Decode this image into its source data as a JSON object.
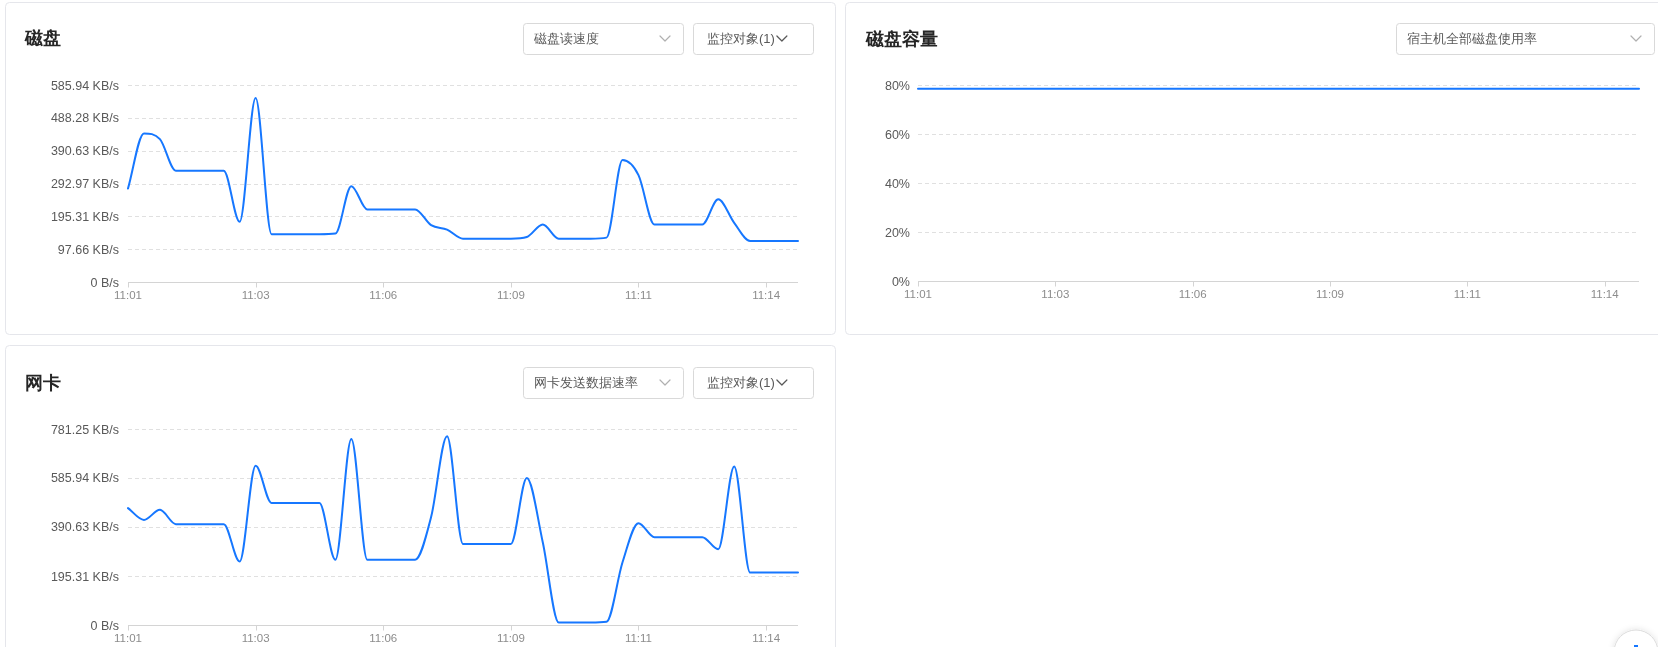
{
  "chart_data": [
    {
      "type": "line",
      "title": "磁盘",
      "annotations": [
        "磁盘读速度",
        "监控对象(1)"
      ],
      "categories": [
        "11:01",
        null,
        null,
        null,
        null,
        null,
        null,
        null,
        "11:03",
        null,
        null,
        null,
        null,
        null,
        null,
        null,
        "11:06",
        null,
        null,
        null,
        null,
        null,
        null,
        null,
        "11:09",
        null,
        null,
        null,
        null,
        null,
        null,
        null,
        "11:11",
        null,
        null,
        null,
        null,
        null,
        null,
        null,
        "11:14",
        null,
        null
      ],
      "series": [
        {
          "color": "#1677ff",
          "values": [
            278,
            442,
            425,
            331,
            331,
            331,
            331,
            179,
            547,
            142,
            142,
            142,
            142,
            144,
            285,
            216,
            216,
            216,
            216,
            169,
            156,
            129,
            129,
            129,
            129,
            134,
            171,
            129,
            129,
            129,
            132,
            363,
            318,
            171,
            171,
            171,
            171,
            246,
            176,
            122,
            122,
            122,
            122
          ]
        }
      ],
      "ylim": [
        0,
        585.94
      ],
      "yticks": [
        {
          "value": 0,
          "label": "0 B/s"
        },
        {
          "value": 97.66,
          "label": "97.66 KB/s"
        },
        {
          "value": 195.31,
          "label": "195.31 KB/s"
        },
        {
          "value": 292.97,
          "label": "292.97 KB/s"
        },
        {
          "value": 390.63,
          "label": "390.63 KB/s"
        },
        {
          "value": 488.28,
          "label": "488.28 KB/s"
        },
        {
          "value": 585.94,
          "label": "585.94 KB/s"
        }
      ],
      "grid": "y"
    },
    {
      "type": "line",
      "title": "磁盘容量",
      "annotations": [
        "宿主机全部磁盘使用率"
      ],
      "categories": [
        "11:01",
        null,
        null,
        null,
        null,
        null,
        null,
        null,
        "11:03",
        null,
        null,
        null,
        null,
        null,
        null,
        null,
        "11:06",
        null,
        null,
        null,
        null,
        null,
        null,
        null,
        "11:09",
        null,
        null,
        null,
        null,
        null,
        null,
        null,
        "11:11",
        null,
        null,
        null,
        null,
        null,
        null,
        null,
        "11:14",
        null,
        null
      ],
      "series": [
        {
          "color": "#1677ff",
          "values": [
            78.5,
            78.5,
            78.5,
            78.5,
            78.5,
            78.5,
            78.5,
            78.5,
            78.5,
            78.5,
            78.5,
            78.5,
            78.5,
            78.5,
            78.5,
            78.5,
            78.5,
            78.5,
            78.5,
            78.5,
            78.5,
            78.5,
            78.5,
            78.5,
            78.5,
            78.5,
            78.5,
            78.5,
            78.5,
            78.5,
            78.5,
            78.5,
            78.5,
            78.5,
            78.5,
            78.5,
            78.5,
            78.5,
            78.5,
            78.5,
            78.5,
            78.5,
            78.5
          ]
        }
      ],
      "ylim": [
        0,
        80
      ],
      "yticks": [
        {
          "value": 0,
          "label": "0%"
        },
        {
          "value": 20,
          "label": "20%"
        },
        {
          "value": 40,
          "label": "40%"
        },
        {
          "value": 60,
          "label": "60%"
        },
        {
          "value": 80,
          "label": "80%"
        }
      ],
      "grid": "y"
    },
    {
      "type": "line",
      "title": "网卡",
      "annotations": [
        "网卡发送数据速率",
        "监控对象(1)"
      ],
      "categories": [
        "11:01",
        null,
        null,
        null,
        null,
        null,
        null,
        null,
        "11:03",
        null,
        null,
        null,
        null,
        null,
        null,
        null,
        "11:06",
        null,
        null,
        null,
        null,
        null,
        null,
        null,
        "11:09",
        null,
        null,
        null,
        null,
        null,
        null,
        null,
        "11:11",
        null,
        null,
        null,
        null,
        null,
        null,
        null,
        "11:14",
        null,
        null
      ],
      "series": [
        {
          "color": "#1677ff",
          "values": [
            466,
            419,
            459,
            402,
            402,
            402,
            402,
            253,
            635,
            486,
            486,
            486,
            486,
            260,
            741,
            260,
            260,
            260,
            260,
            430,
            752,
            323,
            323,
            323,
            323,
            586,
            330,
            10,
            10,
            10,
            13,
            250,
            406,
            350,
            350,
            350,
            350,
            302,
            632,
            209,
            209,
            209,
            209
          ]
        }
      ],
      "ylim": [
        0,
        781.25
      ],
      "yticks": [
        {
          "value": 0,
          "label": "0 B/s"
        },
        {
          "value": 195.31,
          "label": "195.31 KB/s"
        },
        {
          "value": 390.63,
          "label": "390.63 KB/s"
        },
        {
          "value": 585.94,
          "label": "585.94 KB/s"
        },
        {
          "value": 781.25,
          "label": "781.25 KB/s"
        }
      ],
      "grid": "y"
    }
  ]
}
